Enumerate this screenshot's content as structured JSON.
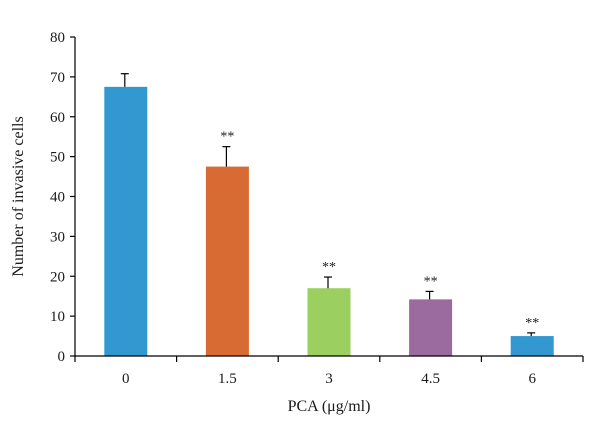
{
  "chart_data": {
    "type": "bar",
    "xlabel": "PCA (μg/ml)",
    "ylabel": "Number of invasive cells",
    "ylim": [
      0,
      80
    ],
    "yticks": [
      0,
      10,
      20,
      30,
      40,
      50,
      60,
      70,
      80
    ],
    "categories": [
      "0",
      "1.5",
      "3",
      "4.5",
      "6"
    ],
    "values": [
      67.5,
      47.5,
      17,
      14.2,
      5
    ],
    "errors": [
      3.3,
      5,
      2.8,
      2,
      0.8
    ],
    "significance": [
      "",
      "**",
      "**",
      "**",
      "**"
    ],
    "colors": [
      "#3498d0",
      "#d86a33",
      "#9bcf5f",
      "#9b6a9e",
      "#3498d0"
    ],
    "grid": false,
    "legend": "none"
  }
}
